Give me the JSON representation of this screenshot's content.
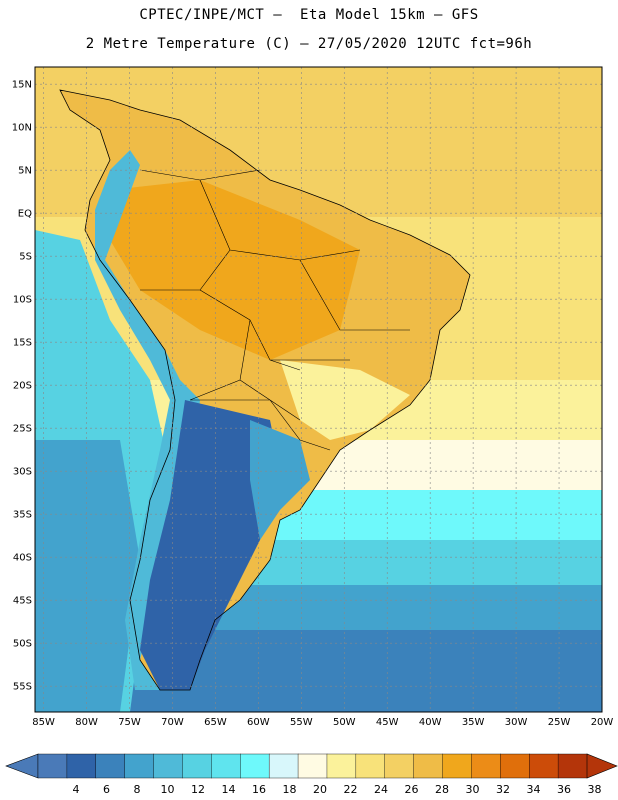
{
  "header": {
    "line1": "CPTEC/INPE/MCT –  Eta Model 15km – GFS",
    "line2": "2 Metre Temperature (C) – 27/05/2020 12UTC fct=96h"
  },
  "axes": {
    "lat_labels": [
      "15N",
      "10N",
      "5N",
      "EQ",
      "5S",
      "10S",
      "15S",
      "20S",
      "25S",
      "30S",
      "35S",
      "40S",
      "45S",
      "50S",
      "55S"
    ],
    "lat_values": [
      15,
      10,
      5,
      0,
      -5,
      -10,
      -15,
      -20,
      -25,
      -30,
      -35,
      -40,
      -45,
      -50,
      -55
    ],
    "lon_labels": [
      "85W",
      "80W",
      "75W",
      "70W",
      "65W",
      "60W",
      "55W",
      "50W",
      "45W",
      "40W",
      "35W",
      "30W",
      "25W",
      "20W"
    ],
    "lon_values": [
      -85,
      -80,
      -75,
      -70,
      -65,
      -60,
      -55,
      -50,
      -45,
      -40,
      -35,
      -30,
      -25,
      -20
    ],
    "lat_range": [
      -58,
      17
    ],
    "lon_range": [
      -86,
      -20
    ]
  },
  "colorbar": {
    "labels": [
      "4",
      "6",
      "8",
      "10",
      "12",
      "14",
      "16",
      "18",
      "20",
      "22",
      "24",
      "26",
      "28",
      "30",
      "32",
      "34",
      "36",
      "38"
    ],
    "colors": [
      "#4a7ab8",
      "#2f63a8",
      "#3b82bb",
      "#43a3cd",
      "#4fbad8",
      "#57d2e2",
      "#5fe4ee",
      "#6ef9fb",
      "#d8f7fb",
      "#fffbe3",
      "#fbf29b",
      "#f8e27a",
      "#f3d063",
      "#efbc47",
      "#f0a71c",
      "#ec8c17",
      "#e06f0b",
      "#cc4c09",
      "#b4350a"
    ],
    "min_color": "#4a7ab8",
    "max_color": "#b4350a"
  },
  "map_colors": {
    "ocean_warm": "#f3d063",
    "ocean_mild": "#f8e27a",
    "ocean_cool": "#6ef9fb",
    "ocean_cold": "#43a3cd",
    "ocean_south": "#3b82bb",
    "land_hot": "#efbc47",
    "land_core": "#f0a71c",
    "andes": "#4fbad8",
    "patagonia": "#2f63a8",
    "border": "#000000"
  }
}
